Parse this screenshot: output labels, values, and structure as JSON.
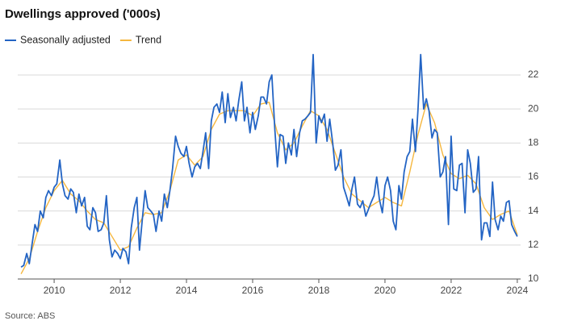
{
  "chart_data": {
    "type": "line",
    "title": "Dwellings approved ('000s)",
    "source": "Source: ABS",
    "xlim": [
      2008.9,
      2024.1
    ],
    "xticks": [
      2010,
      2012,
      2014,
      2016,
      2018,
      2020,
      2022,
      2024
    ],
    "ylim": [
      10,
      23.5
    ],
    "yticks": [
      10,
      12,
      14,
      16,
      18,
      20,
      22
    ],
    "grid": true,
    "series": [
      {
        "name": "Seasonally adjusted",
        "color": "#2364c4",
        "x": [
          2009.0,
          2009.08,
          2009.17,
          2009.25,
          2009.33,
          2009.42,
          2009.5,
          2009.58,
          2009.67,
          2009.75,
          2009.83,
          2009.92,
          2010.0,
          2010.08,
          2010.17,
          2010.25,
          2010.33,
          2010.42,
          2010.5,
          2010.58,
          2010.67,
          2010.75,
          2010.83,
          2010.92,
          2011.0,
          2011.08,
          2011.17,
          2011.25,
          2011.33,
          2011.42,
          2011.5,
          2011.58,
          2011.67,
          2011.75,
          2011.83,
          2011.92,
          2012.0,
          2012.08,
          2012.17,
          2012.25,
          2012.33,
          2012.42,
          2012.5,
          2012.58,
          2012.67,
          2012.75,
          2012.83,
          2012.92,
          2013.0,
          2013.08,
          2013.17,
          2013.25,
          2013.33,
          2013.42,
          2013.5,
          2013.58,
          2013.67,
          2013.75,
          2013.83,
          2013.92,
          2014.0,
          2014.08,
          2014.17,
          2014.25,
          2014.33,
          2014.42,
          2014.5,
          2014.58,
          2014.67,
          2014.75,
          2014.83,
          2014.92,
          2015.0,
          2015.08,
          2015.17,
          2015.25,
          2015.33,
          2015.42,
          2015.5,
          2015.58,
          2015.67,
          2015.75,
          2015.83,
          2015.92,
          2016.0,
          2016.08,
          2016.17,
          2016.25,
          2016.33,
          2016.42,
          2016.5,
          2016.58,
          2016.67,
          2016.75,
          2016.83,
          2016.92,
          2017.0,
          2017.08,
          2017.17,
          2017.25,
          2017.33,
          2017.42,
          2017.5,
          2017.58,
          2017.67,
          2017.75,
          2017.83,
          2017.92,
          2018.0,
          2018.08,
          2018.17,
          2018.25,
          2018.33,
          2018.42,
          2018.5,
          2018.58,
          2018.67,
          2018.75,
          2018.83,
          2018.92,
          2019.0,
          2019.08,
          2019.17,
          2019.25,
          2019.33,
          2019.42,
          2019.5,
          2019.58,
          2019.67,
          2019.75,
          2019.83,
          2019.92,
          2020.0,
          2020.08,
          2020.17,
          2020.25,
          2020.33,
          2020.42,
          2020.5,
          2020.58,
          2020.67,
          2020.75,
          2020.83,
          2020.92,
          2021.0,
          2021.08,
          2021.17,
          2021.25,
          2021.33,
          2021.42,
          2021.5,
          2021.58,
          2021.67,
          2021.75,
          2021.83,
          2021.92,
          2022.0,
          2022.08,
          2022.17,
          2022.25,
          2022.33,
          2022.42,
          2022.5,
          2022.58,
          2022.67,
          2022.75,
          2022.83,
          2022.92,
          2023.0,
          2023.08,
          2023.17,
          2023.25,
          2023.33,
          2023.42,
          2023.5,
          2023.58,
          2023.67,
          2023.75,
          2023.83,
          2023.92,
          2024.0
        ],
        "values": [
          10.7,
          10.8,
          11.5,
          10.9,
          12.0,
          13.2,
          12.8,
          14.0,
          13.6,
          14.8,
          15.2,
          14.9,
          15.4,
          15.6,
          17.0,
          15.6,
          14.9,
          14.7,
          15.3,
          15.1,
          13.9,
          15.0,
          14.3,
          14.8,
          13.1,
          12.9,
          14.2,
          13.9,
          12.8,
          12.9,
          13.3,
          14.9,
          12.3,
          11.3,
          11.7,
          11.5,
          11.2,
          11.8,
          11.6,
          10.9,
          13.0,
          14.2,
          14.8,
          11.7,
          13.6,
          15.2,
          14.2,
          14.0,
          13.8,
          12.8,
          14.0,
          13.4,
          15.0,
          14.2,
          15.2,
          16.5,
          18.4,
          17.8,
          17.4,
          17.2,
          17.8,
          16.8,
          16.0,
          16.6,
          16.8,
          16.5,
          17.5,
          18.6,
          16.5,
          19.3,
          20.1,
          20.3,
          19.8,
          21.0,
          19.2,
          20.9,
          19.5,
          20.1,
          19.3,
          20.5,
          21.6,
          19.3,
          20.1,
          18.6,
          19.8,
          18.8,
          19.6,
          20.7,
          20.7,
          20.3,
          21.6,
          22.0,
          18.8,
          16.6,
          18.5,
          18.4,
          16.8,
          18.0,
          17.3,
          18.8,
          17.2,
          18.6,
          19.3,
          19.4,
          19.6,
          19.8,
          23.2,
          18.0,
          19.6,
          19.2,
          19.7,
          18.1,
          19.4,
          18.0,
          16.4,
          16.7,
          17.6,
          15.4,
          14.9,
          14.3,
          15.3,
          16.0,
          14.4,
          14.2,
          14.6,
          13.7,
          14.1,
          14.5,
          14.9,
          16.0,
          14.7,
          13.9,
          15.5,
          16.0,
          15.2,
          13.4,
          12.9,
          15.5,
          14.7,
          16.3,
          17.2,
          17.5,
          19.4,
          17.5,
          20.0,
          23.2,
          20.0,
          20.6,
          19.9,
          18.3,
          18.8,
          18.6,
          16.0,
          16.3,
          17.2,
          13.2,
          18.4,
          15.3,
          15.2,
          16.7,
          16.8,
          13.9,
          17.6,
          16.8,
          15.1,
          15.3,
          17.2,
          12.3,
          13.3,
          13.3,
          12.5,
          15.7,
          13.5,
          12.9,
          13.7,
          13.4,
          14.5,
          14.6,
          13.2,
          12.8,
          12.5
        ]
      },
      {
        "name": "Trend",
        "color": "#f5b73f",
        "x": [
          2009.0,
          2009.25,
          2009.5,
          2009.75,
          2010.0,
          2010.25,
          2010.5,
          2010.75,
          2011.0,
          2011.25,
          2011.5,
          2011.75,
          2012.0,
          2012.25,
          2012.5,
          2012.75,
          2013.0,
          2013.25,
          2013.5,
          2013.75,
          2014.0,
          2014.25,
          2014.5,
          2014.75,
          2015.0,
          2015.25,
          2015.5,
          2015.75,
          2016.0,
          2016.25,
          2016.5,
          2016.75,
          2017.0,
          2017.25,
          2017.5,
          2017.75,
          2018.0,
          2018.25,
          2018.5,
          2018.75,
          2019.0,
          2019.25,
          2019.5,
          2019.75,
          2020.0,
          2020.25,
          2020.5,
          2020.75,
          2021.0,
          2021.25,
          2021.5,
          2021.75,
          2022.0,
          2022.25,
          2022.5,
          2022.75,
          2023.0,
          2023.25,
          2023.5,
          2023.75,
          2024.0
        ],
        "values": [
          10.3,
          11.2,
          12.8,
          14.2,
          15.2,
          15.8,
          15.0,
          14.6,
          14.0,
          13.5,
          13.3,
          12.5,
          11.7,
          11.9,
          13.0,
          13.9,
          13.8,
          13.9,
          15.2,
          17.0,
          17.3,
          16.7,
          17.2,
          18.8,
          19.7,
          19.9,
          19.9,
          19.9,
          19.6,
          20.3,
          20.4,
          18.6,
          17.6,
          18.0,
          19.0,
          19.9,
          19.6,
          18.8,
          17.4,
          16.0,
          15.0,
          14.6,
          14.2,
          14.5,
          14.8,
          14.5,
          14.3,
          16.3,
          18.5,
          20.3,
          19.2,
          17.3,
          16.2,
          15.9,
          16.1,
          15.6,
          14.2,
          13.5,
          13.8,
          14.0,
          12.6
        ]
      }
    ]
  }
}
